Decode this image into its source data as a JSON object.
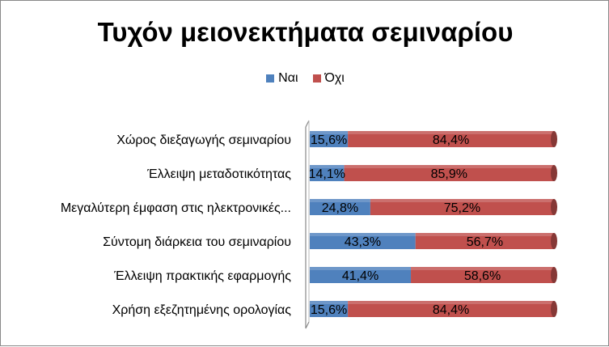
{
  "chart_data": {
    "type": "bar",
    "orientation": "horizontal",
    "stacked": "percent",
    "title": "Τυχόν μειονεκτήματα σεμιναρίου",
    "legend_position": "top",
    "categories": [
      "Χώρος διεξαγωγής σεμιναρίου",
      "Έλλειψη μεταδοτικότητας",
      "Μεγαλύτερη έμφαση στις ηλεκτρονικές...",
      "Σύντομη διάρκεια του σεμιναρίου",
      "Έλλειψη πρακτικής εφαρμογής",
      "Χρήση εξεζητημένης ορολογίας"
    ],
    "series": [
      {
        "name": "Ναι",
        "color": "#4f81bd",
        "values": [
          15.6,
          14.1,
          24.8,
          43.3,
          41.4,
          15.6
        ],
        "labels": [
          "15,6%",
          "14,1%",
          "24,8%",
          "43,3%",
          "41,4%",
          "15,6%"
        ]
      },
      {
        "name": "Όχι",
        "color": "#c0504d",
        "values": [
          84.4,
          85.9,
          75.2,
          56.7,
          58.6,
          84.4
        ],
        "labels": [
          "84,4%",
          "85,9%",
          "75,2%",
          "56,7%",
          "58,6%",
          "84,4%"
        ]
      }
    ],
    "xlim": [
      0,
      100
    ],
    "grid": false
  }
}
